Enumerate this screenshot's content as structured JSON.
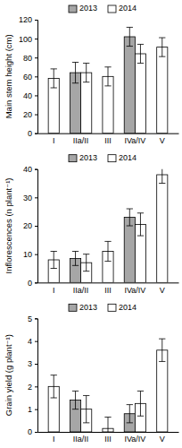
{
  "chart_data": [
    {
      "type": "bar",
      "y_label": "Main stem height (cm)",
      "categories": [
        "I",
        "IIa/II",
        "III",
        "IVa/IV",
        "V"
      ],
      "series": [
        {
          "name": "2013",
          "color": "#a6a6a6",
          "values": [
            null,
            64,
            null,
            102,
            null
          ],
          "errors": [
            null,
            11,
            null,
            10,
            null
          ]
        },
        {
          "name": "2014",
          "color": "#ffffff",
          "values": [
            58,
            64,
            60,
            84,
            91
          ],
          "errors": [
            10,
            10,
            10,
            10,
            10
          ]
        }
      ],
      "ylim": [
        0,
        120
      ],
      "yticks": [
        0,
        20,
        40,
        60,
        80,
        100,
        120
      ],
      "legend": "top"
    },
    {
      "type": "bar",
      "y_label": "Inflorescences (n plant⁻¹)",
      "categories": [
        "I",
        "IIa/II",
        "III",
        "IVa/IV",
        "V"
      ],
      "series": [
        {
          "name": "2013",
          "color": "#a6a6a6",
          "values": [
            null,
            8.5,
            null,
            23,
            null
          ],
          "errors": [
            null,
            2.5,
            null,
            3,
            null
          ]
        },
        {
          "name": "2014",
          "color": "#ffffff",
          "values": [
            8,
            7,
            11,
            20.5,
            38
          ],
          "errors": [
            3,
            3,
            3.5,
            4,
            3
          ]
        }
      ],
      "ylim": [
        0,
        40
      ],
      "yticks": [
        0,
        10,
        20,
        30,
        40
      ],
      "legend": "top"
    },
    {
      "type": "bar",
      "y_label": "Grain yield (g plant⁻¹)",
      "categories": [
        "I",
        "IIa/II",
        "III",
        "IVa/IV",
        "V"
      ],
      "series": [
        {
          "name": "2013",
          "color": "#a6a6a6",
          "values": [
            null,
            1.4,
            null,
            0.8,
            null
          ],
          "errors": [
            null,
            0.4,
            null,
            0.4,
            null
          ]
        },
        {
          "name": "2014",
          "color": "#ffffff",
          "values": [
            2.0,
            1.0,
            0.15,
            1.25,
            3.6
          ],
          "errors": [
            0.5,
            0.6,
            0.5,
            0.55,
            0.5
          ]
        }
      ],
      "ylim": [
        0,
        5
      ],
      "yticks": [
        0,
        1,
        2,
        3,
        4,
        5
      ],
      "legend": "top"
    }
  ]
}
